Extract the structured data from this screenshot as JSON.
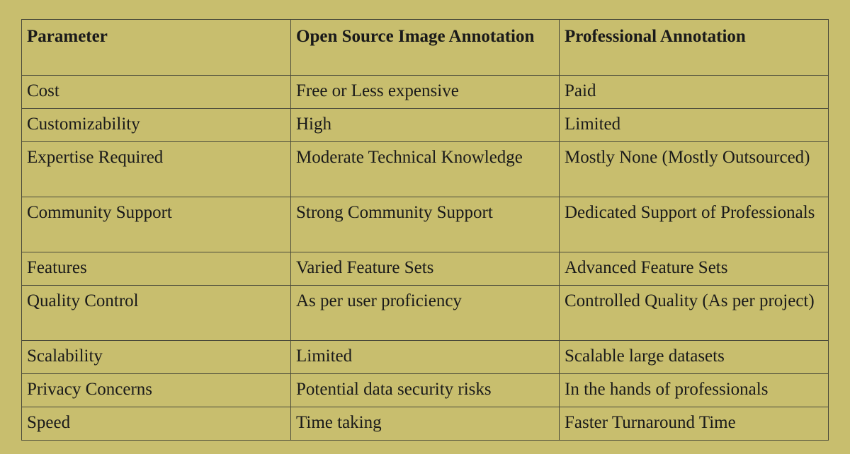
{
  "table": {
    "headers": [
      "Parameter",
      "Open Source Image Annotation",
      "Professional Annotation"
    ],
    "rows": [
      {
        "parameter": "Cost",
        "open_source": "Free or Less expensive",
        "professional": "Paid"
      },
      {
        "parameter": "Customizability",
        "open_source": "High",
        "professional": "Limited"
      },
      {
        "parameter": "Expertise Required",
        "open_source": "Moderate Technical Knowledge",
        "professional": "Mostly None (Mostly Outsourced)"
      },
      {
        "parameter": "Community Support",
        "open_source": "Strong Community Support",
        "professional": "Dedicated Support of Professionals"
      },
      {
        "parameter": "Features",
        "open_source": "Varied Feature Sets",
        "professional": "Advanced Feature Sets"
      },
      {
        "parameter": "Quality Control",
        "open_source": "As per user proficiency",
        "professional": "Controlled Quality (As per project)"
      },
      {
        "parameter": "Scalability",
        "open_source": "Limited",
        "professional": "Scalable large datasets"
      },
      {
        "parameter": "Privacy Concerns",
        "open_source": "Potential data security risks",
        "professional": "In the hands of professionals"
      },
      {
        "parameter": "Speed",
        "open_source": "Time taking",
        "professional": "Faster Turnaround Time"
      }
    ]
  }
}
